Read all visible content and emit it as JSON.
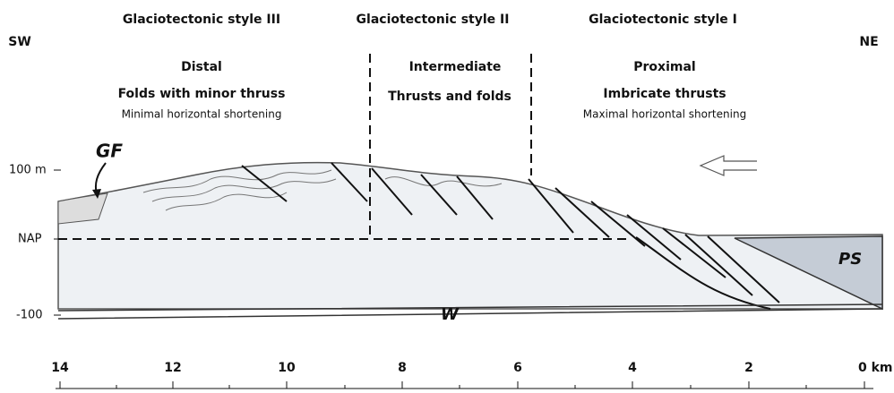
{
  "header": {
    "styles": [
      "Glaciotectonic style III",
      "Glaciotectonic style II",
      "Glaciotectonic style I"
    ],
    "left_direction": "SW",
    "right_direction": "NE"
  },
  "zones": [
    {
      "name": "Distal",
      "deformation": "Folds with minor thruss",
      "shortening": "Minimal horizontal shortening"
    },
    {
      "name": "Intermediate",
      "deformation": "Thrusts and folds"
    },
    {
      "name": "Proximal",
      "deformation": "Imbricate thrusts",
      "shortening": "Maximal horizontal shortening"
    }
  ],
  "depth_labels": [
    "100 m",
    "NAP",
    "-100"
  ],
  "units": {
    "glacial_front": "GF",
    "base": "W",
    "basin": "PS"
  },
  "scale_labels": [
    "14",
    "12",
    "10",
    "8",
    "6",
    "4",
    "2",
    "0 km"
  ]
}
